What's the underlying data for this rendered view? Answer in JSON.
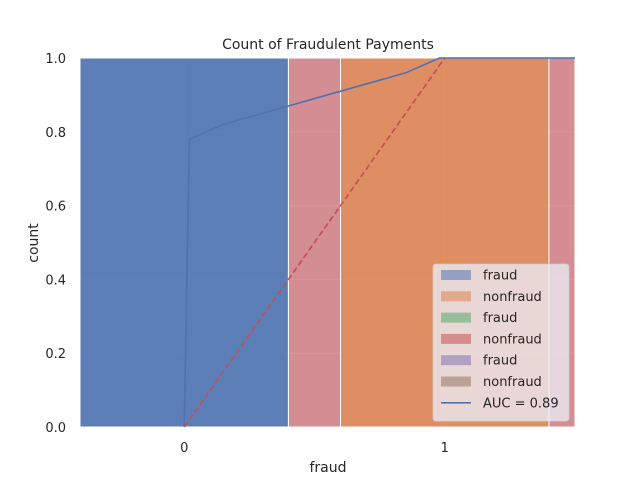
{
  "chart_data": {
    "type": "bar",
    "title": "Count of Fraudulent Payments",
    "xlabel": "fraud",
    "ylabel": "count",
    "x_ticks": [
      "0",
      "1"
    ],
    "y_ticks": [
      "0.0",
      "0.2",
      "0.4",
      "0.6",
      "0.8",
      "1.0"
    ],
    "xlim": [
      -0.4,
      1.5
    ],
    "ylim": [
      0,
      1
    ],
    "grid": true,
    "legend_position": "lower-right",
    "bar_series": [
      {
        "name": "fraud",
        "color": "#4c72b0",
        "opacity": 0.9,
        "bars": [
          {
            "x0": -0.4,
            "x1": 0.4,
            "value": 1.0
          }
        ]
      },
      {
        "name": "nonfraud",
        "color": "#dd8452",
        "opacity": 0.9,
        "bars": [
          {
            "x0": 0.6,
            "x1": 1.4,
            "value": 1.0
          }
        ]
      },
      {
        "name": "fraud",
        "color": "#55a868",
        "opacity": 0.6,
        "bars": []
      },
      {
        "name": "nonfraud",
        "color": "#c44e52",
        "opacity": 0.6,
        "bars": [
          {
            "x0": 0.4,
            "x1": 0.6,
            "value": 1.0
          },
          {
            "x0": 1.4,
            "x1": 1.5,
            "value": 1.0
          }
        ]
      },
      {
        "name": "fraud",
        "color": "#8172b3",
        "opacity": 0.6,
        "bars": []
      },
      {
        "name": "nonfraud",
        "color": "#937860",
        "opacity": 0.6,
        "bars": []
      }
    ],
    "lines": [
      {
        "name": "AUC = 0.89",
        "color": "#4c72b0",
        "dash": false,
        "points": [
          [
            0,
            0
          ],
          [
            0.02,
            0.78
          ],
          [
            0.15,
            0.82
          ],
          [
            0.4,
            0.87
          ],
          [
            0.6,
            0.91
          ],
          [
            0.85,
            0.96
          ],
          [
            0.98,
            1.0
          ],
          [
            1.5,
            1.0
          ]
        ]
      },
      {
        "name": "",
        "color": "#c44e52",
        "dash": true,
        "points": [
          [
            0,
            0
          ],
          [
            1,
            1
          ]
        ]
      }
    ],
    "legend": [
      {
        "label": "fraud",
        "kind": "patch",
        "color": "#4c72b0"
      },
      {
        "label": "nonfraud",
        "kind": "patch",
        "color": "#dd8452"
      },
      {
        "label": "fraud",
        "kind": "patch",
        "color": "#55a868"
      },
      {
        "label": "nonfraud",
        "kind": "patch",
        "color": "#c44e52"
      },
      {
        "label": "fraud",
        "kind": "patch",
        "color": "#8172b3"
      },
      {
        "label": "nonfraud",
        "kind": "patch",
        "color": "#937860"
      },
      {
        "label": "AUC = 0.89",
        "kind": "line",
        "color": "#4c72b0"
      }
    ],
    "colors": {
      "background": "#eaeaf2",
      "grid": "#ffffff"
    }
  }
}
